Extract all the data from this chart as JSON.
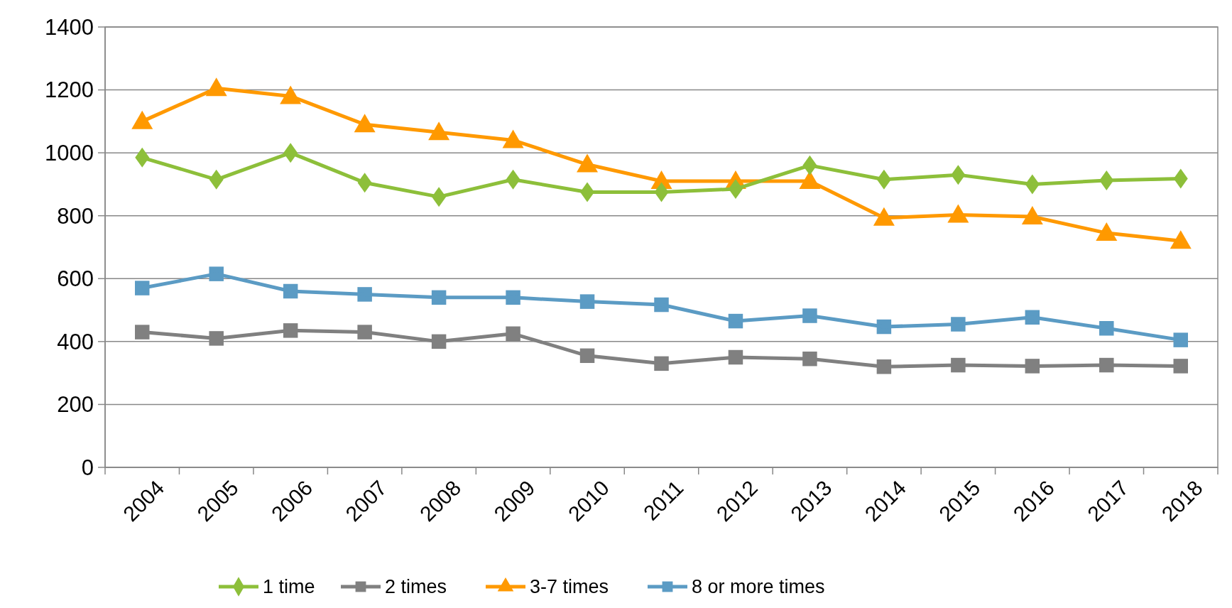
{
  "chart_data": {
    "type": "line",
    "categories": [
      "2004",
      "2005",
      "2006",
      "2007",
      "2008",
      "2009",
      "2010",
      "2011",
      "2012",
      "2013",
      "2014",
      "2015",
      "2016",
      "2017",
      "2018"
    ],
    "series": [
      {
        "name": "1 time",
        "color": "#8dbf3a",
        "marker": "diamond",
        "values": [
          985,
          915,
          1000,
          905,
          860,
          915,
          875,
          875,
          885,
          960,
          915,
          930,
          900,
          912,
          918
        ]
      },
      {
        "name": "2 times",
        "color": "#808080",
        "marker": "square",
        "values": [
          430,
          410,
          435,
          430,
          400,
          425,
          355,
          330,
          350,
          345,
          320,
          325,
          322,
          325,
          322
        ]
      },
      {
        "name": "3-7 times",
        "color": "#ff9900",
        "marker": "triangle",
        "values": [
          1100,
          1205,
          1180,
          1090,
          1065,
          1040,
          963,
          910,
          910,
          910,
          793,
          803,
          797,
          745,
          720
        ]
      },
      {
        "name": "8 or more times",
        "color": "#5b9bc4",
        "marker": "square",
        "values": [
          570,
          615,
          560,
          550,
          540,
          540,
          527,
          517,
          465,
          482,
          447,
          455,
          477,
          442,
          405
        ]
      }
    ],
    "ylim": [
      0,
      1400
    ],
    "yticks": [
      0,
      200,
      400,
      600,
      800,
      1000,
      1200,
      1400
    ],
    "grid": "y",
    "legend": "bottom",
    "line_style": "solid"
  }
}
